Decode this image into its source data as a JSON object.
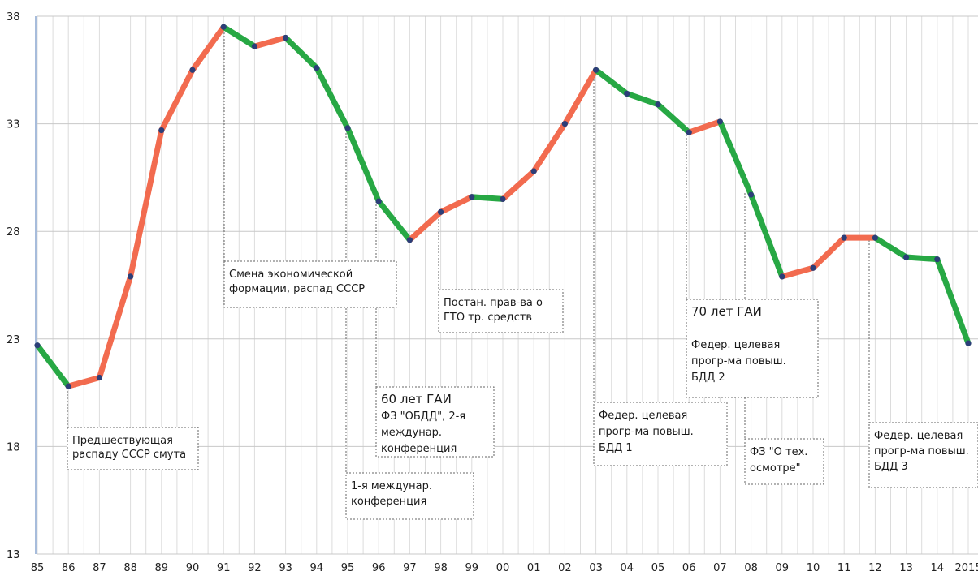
{
  "chart_data": {
    "type": "line",
    "title": "",
    "xlabel": "",
    "ylabel": "",
    "ylim": [
      13,
      38
    ],
    "y_ticks": [
      "13",
      "18",
      "23",
      "28",
      "33",
      "38"
    ],
    "x": [
      "85",
      "86",
      "87",
      "88",
      "89",
      "90",
      "91",
      "92",
      "93",
      "94",
      "95",
      "96",
      "97",
      "98",
      "99",
      "00",
      "01",
      "02",
      "03",
      "04",
      "05",
      "06",
      "07",
      "08",
      "09",
      "10",
      "11",
      "12",
      "13",
      "14",
      "2015"
    ],
    "values": [
      22.7,
      20.8,
      21.2,
      25.9,
      32.7,
      35.5,
      37.5,
      36.6,
      37.0,
      35.6,
      32.8,
      29.4,
      27.6,
      28.9,
      29.6,
      29.5,
      30.8,
      33.0,
      35.5,
      34.4,
      33.9,
      32.6,
      33.1,
      29.7,
      25.9,
      26.3,
      27.7,
      27.7,
      26.8,
      26.7,
      22.8
    ],
    "colors": {
      "rise": "#f26b4f",
      "fall": "#27a844",
      "point": "#2c3e78",
      "grid": "#dcdcdc"
    },
    "grid": true,
    "annotations": [
      {
        "lines": [
          "Предшествующая",
          "распаду СССР смута"
        ],
        "big": false
      },
      {
        "lines": [
          "Смена экономической",
          "формации, распад СССР"
        ],
        "big": false
      },
      {
        "lines": [
          "Постан. прав-ва о",
          "ГТО тр. средств"
        ],
        "big": false
      },
      {
        "lines": [
          "60 лет ГАИ",
          "ФЗ \"ОБДД\", 2-я",
          "междунар.",
          "конференция"
        ],
        "big": true
      },
      {
        "lines": [
          "1-я междунар.",
          "конференция"
        ],
        "big": false
      },
      {
        "lines": [
          "Федер. целевая",
          "прогр-ма повыш.",
          "БДД 1"
        ],
        "big": false
      },
      {
        "lines": [
          "70 лет ГАИ",
          "",
          "Федер. целевая",
          "прогр-ма повыш.",
          "БДД 2"
        ],
        "big": true
      },
      {
        "lines": [
          "ФЗ \"О тех.",
          "осмотре\""
        ],
        "big": false
      },
      {
        "lines": [
          "Федер. целевая",
          "прогр-ма повыш.",
          "БДД 3"
        ],
        "big": false
      }
    ]
  }
}
